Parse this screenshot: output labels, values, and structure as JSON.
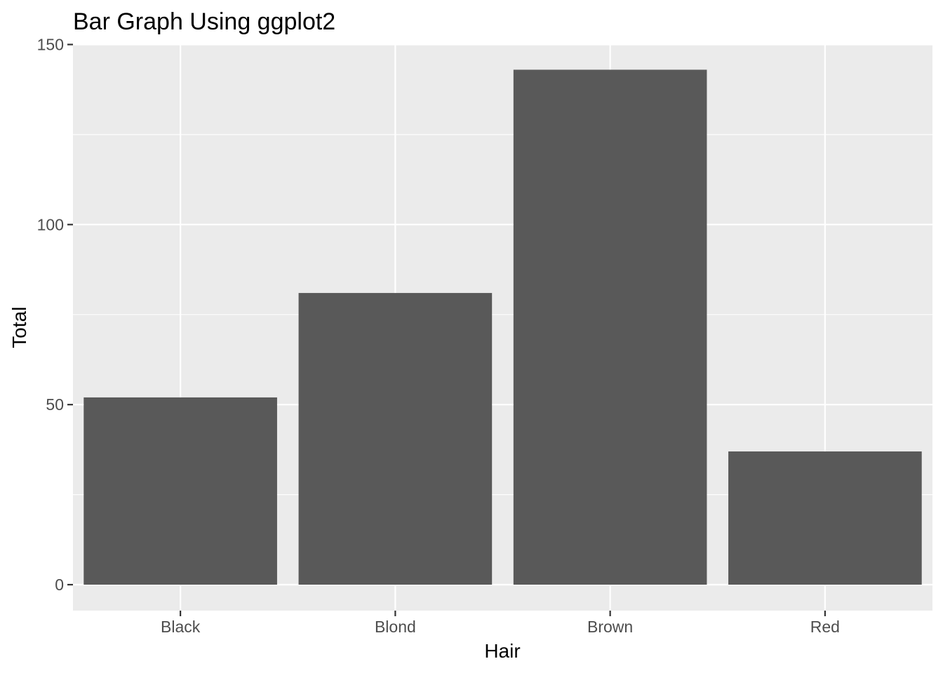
{
  "chart_data": {
    "type": "bar",
    "title": "Bar Graph Using ggplot2",
    "xlabel": "Hair",
    "ylabel": "Total",
    "categories": [
      "Black",
      "Blond",
      "Brown",
      "Red"
    ],
    "values": [
      52,
      81,
      143,
      37
    ],
    "ylim": [
      0,
      150
    ],
    "yticks": [
      0,
      50,
      100,
      150
    ],
    "ytick_labels": [
      "0",
      "50",
      "100",
      "150"
    ],
    "grid": true,
    "colors": {
      "bar": "#595959",
      "panel": "#ebebeb",
      "grid": "#ffffff",
      "tick": "#333333"
    }
  }
}
